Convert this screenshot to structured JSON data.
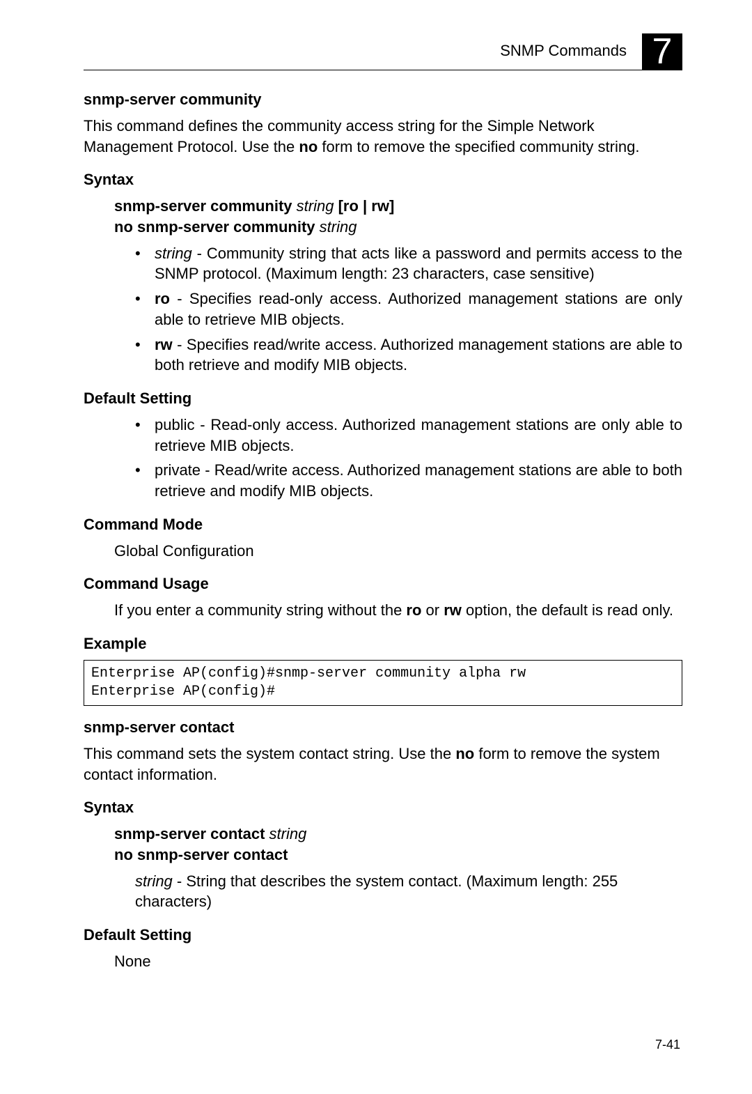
{
  "header": {
    "title": "SNMP Commands",
    "chapter_number": "7"
  },
  "section1": {
    "heading": "snmp-server community",
    "intro_prefix": "This command defines the community access string for the Simple Network Management Protocol. Use the ",
    "intro_bold": "no",
    "intro_suffix": " form to remove the specified community string.",
    "syntax_label": "Syntax",
    "syntax_line1_bold1": "snmp-server community",
    "syntax_line1_italic": " string ",
    "syntax_line1_bold2": "[ro | rw]",
    "syntax_line2_bold": "no snmp-server community",
    "syntax_line2_italic": " string",
    "bullet1_italic": "string",
    "bullet1_rest": " - Community string that acts like a password and permits access to the SNMP protocol. (Maximum length: 23 characters, case sensitive)",
    "bullet2_bold": "ro",
    "bullet2_rest": " - Specifies read-only access. Authorized management stations are only able to retrieve MIB objects.",
    "bullet3_bold": "rw",
    "bullet3_rest": " - Specifies read/write access. Authorized management stations are able to both retrieve and modify MIB objects.",
    "default_label": "Default Setting",
    "default_b1": "public - Read-only access. Authorized management stations are only able to retrieve MIB objects.",
    "default_b2": "private - Read/write access. Authorized management stations are able to both retrieve and modify MIB objects.",
    "mode_label": "Command Mode",
    "mode_text": "Global Configuration",
    "usage_label": "Command Usage",
    "usage_prefix": "If you enter a community string without the ",
    "usage_bold1": "ro",
    "usage_mid": " or ",
    "usage_bold2": "rw",
    "usage_suffix": " option, the default is read only.",
    "example_label": "Example",
    "example_code": "Enterprise AP(config)#snmp-server community alpha rw\nEnterprise AP(config)#"
  },
  "section2": {
    "heading": "snmp-server contact",
    "intro_prefix": "This command sets the system contact string. Use the ",
    "intro_bold": "no",
    "intro_suffix": " form to remove the system contact information.",
    "syntax_label": "Syntax",
    "syntax_line1_bold": "snmp-server contact",
    "syntax_line1_italic": " string",
    "syntax_line2_bold": "no snmp-server contact",
    "param_italic": "string",
    "param_rest": " - String that describes the system contact. (Maximum length: 255 characters)",
    "default_label": "Default Setting",
    "default_text": "None"
  },
  "footer": {
    "page": "7-41"
  }
}
